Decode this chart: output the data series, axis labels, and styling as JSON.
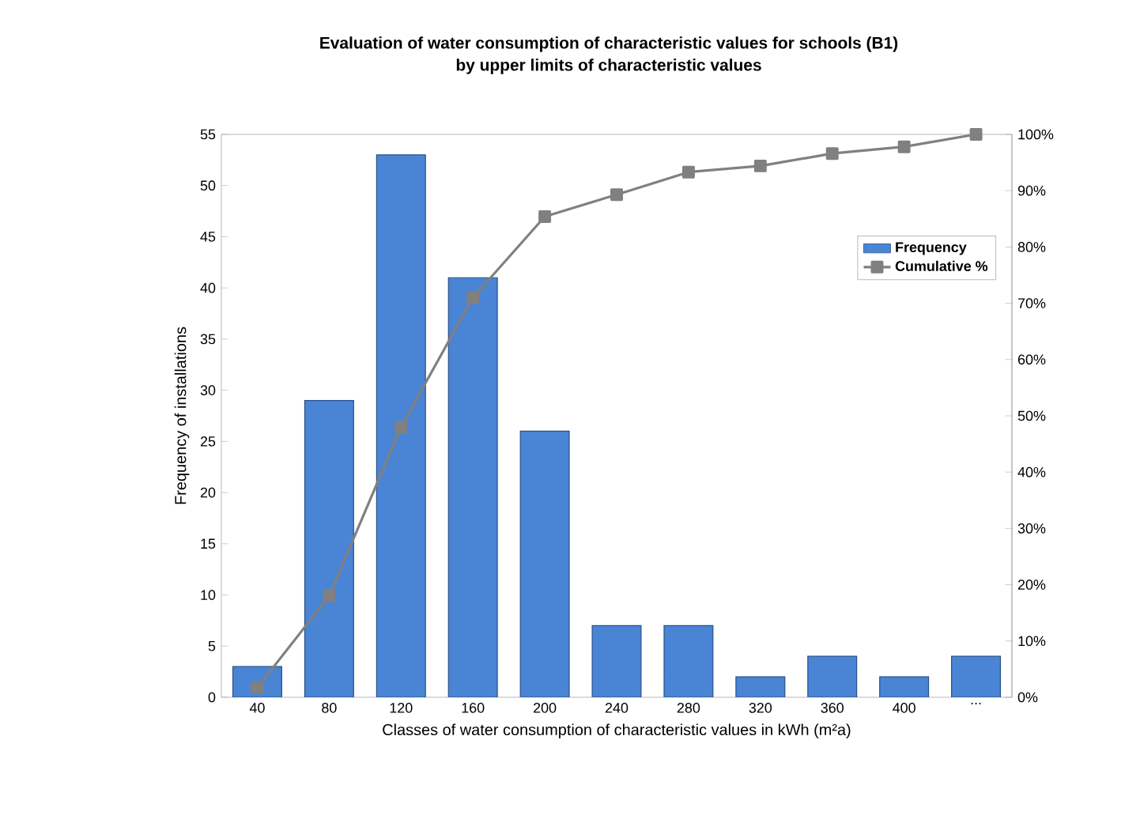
{
  "chart_data": {
    "type": "bar",
    "title": "Evaluation of water consumption of characteristic values for schools (B1)",
    "subtitle": "by upper limits of characteristic values",
    "xlabel": "Classes of water consumption of characteristic values in kWh (m²a)",
    "ylabel": "Frequency of installations",
    "categories": [
      "40",
      "80",
      "120",
      "160",
      "200",
      "240",
      "280",
      "320",
      "360",
      "400",
      "..."
    ],
    "series": [
      {
        "name": "Frequency",
        "color": "#4a84d4",
        "values": [
          3,
          29,
          53,
          41,
          26,
          7,
          7,
          2,
          4,
          2,
          4
        ]
      },
      {
        "name": "Cumulative %",
        "type": "line",
        "axis": "y2",
        "color": "#808080",
        "marker": "square",
        "values": [
          1.7,
          18,
          48,
          71,
          85.4,
          89.3,
          93.3,
          94.4,
          96.6,
          97.8,
          100
        ]
      }
    ],
    "ylim": [
      0,
      55
    ],
    "yticks": [
      0,
      5,
      10,
      15,
      20,
      25,
      30,
      35,
      40,
      45,
      50,
      55
    ],
    "y2lim": [
      0,
      100
    ],
    "y2ticks": [
      {
        "value": 0,
        "label": "0%"
      },
      {
        "value": 10,
        "label": "10%"
      },
      {
        "value": 20,
        "label": "20%"
      },
      {
        "value": 30,
        "label": "30%"
      },
      {
        "value": 40,
        "label": "40%"
      },
      {
        "value": 50,
        "label": "50%"
      },
      {
        "value": 60,
        "label": "60%"
      },
      {
        "value": 70,
        "label": "70%"
      },
      {
        "value": 80,
        "label": "80%"
      },
      {
        "value": 90,
        "label": "90%"
      },
      {
        "value": 100,
        "label": "100%"
      }
    ],
    "legend": "top right"
  }
}
